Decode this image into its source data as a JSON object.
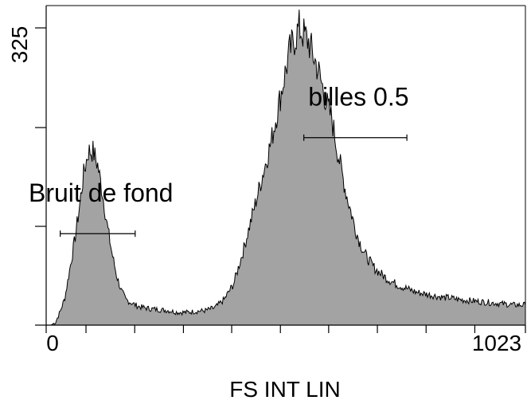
{
  "chart_data": {
    "type": "area",
    "title": "",
    "xlabel": "FS INT LIN",
    "ylabel": "",
    "xlim": [
      0,
      1023
    ],
    "ylim": [
      0,
      325
    ],
    "x_tick_labels": [
      "0",
      "1023"
    ],
    "y_tick_labels": [
      "325"
    ],
    "grid": false,
    "fill_color": "#a3a3a3",
    "line_color": "#000000",
    "series": [
      {
        "x": [
          0,
          10,
          20,
          30,
          40,
          50,
          60,
          70,
          80,
          90,
          100,
          110,
          120,
          130,
          140,
          150,
          160,
          170,
          180,
          190,
          200,
          220,
          240,
          260,
          280,
          300,
          320,
          340,
          360,
          380,
          400,
          420,
          440,
          460,
          480,
          500,
          520,
          540,
          560,
          580,
          590,
          600,
          610,
          620,
          630,
          640,
          650,
          660,
          670,
          680,
          690,
          700,
          710,
          720,
          730,
          740,
          750,
          760,
          770,
          780,
          790,
          800,
          810,
          820,
          830,
          840,
          850,
          860,
          870,
          880,
          900,
          920,
          940,
          960,
          980,
          1000,
          1023
        ],
        "values": [
          0,
          0,
          3,
          15,
          30,
          60,
          90,
          125,
          165,
          190,
          190,
          175,
          145,
          110,
          80,
          55,
          38,
          28,
          25,
          22,
          20,
          18,
          17,
          16,
          14,
          14,
          15,
          16,
          19,
          28,
          45,
          80,
          120,
          160,
          200,
          250,
          300,
          325,
          310,
          280,
          260,
          240,
          225,
          195,
          170,
          145,
          125,
          105,
          90,
          78,
          70,
          63,
          58,
          54,
          50,
          47,
          44,
          42,
          40,
          38,
          36,
          35,
          34,
          33,
          32,
          31,
          30,
          30,
          29,
          28,
          27,
          26,
          25,
          24,
          23,
          22,
          22
        ]
      }
    ],
    "annotations": [
      {
        "text": "Bruit de fond",
        "gate_x": [
          30,
          190
        ],
        "gate_y": 100
      },
      {
        "text": "billes 0.5",
        "gate_x": [
          550,
          770
        ],
        "gate_y": 205
      }
    ],
    "x_minor_ticks": [
      85,
      189,
      293,
      396,
      500,
      603,
      707,
      811,
      915
    ],
    "y_minor_ticks": [
      108,
      216
    ]
  }
}
